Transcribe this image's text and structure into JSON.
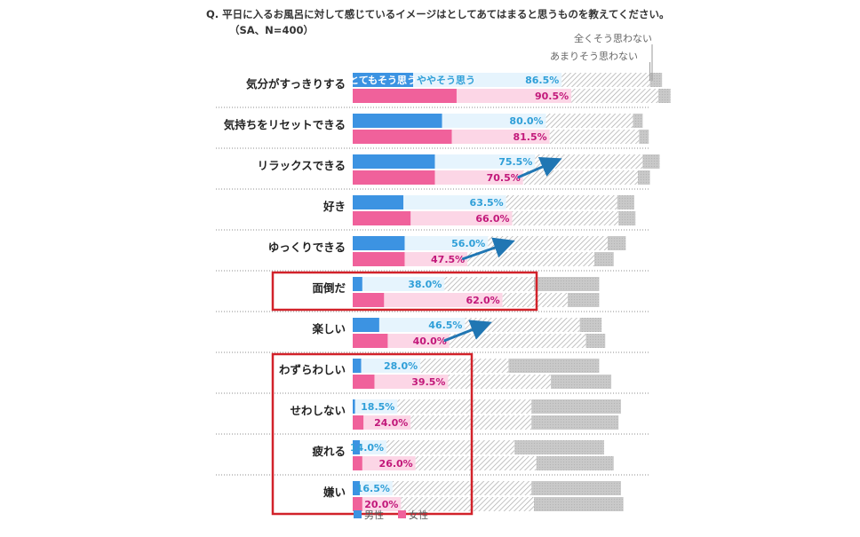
{
  "question": {
    "title": "Q. 平日に入るお風呂に対して感じているイメージはとしてあてはまると思うものを教えてください。",
    "subtitle": "（SA、N=400）"
  },
  "chart_data": {
    "type": "bar",
    "orientation": "horizontal",
    "stacked": true,
    "levels": [
      "とてもそう思う",
      "ややそう思う",
      "あまりそう思わない",
      "全くそう思わない"
    ],
    "series_names": [
      "男性",
      "女性"
    ],
    "categories": [
      "気分がすっきりする",
      "気持ちをリセットできる",
      "リラックスできる",
      "好き",
      "ゆっくりできる",
      "面倒だ",
      "楽しい",
      "わずらわしい",
      "せわしない",
      "疲れる",
      "嫌い"
    ],
    "male": [
      {
        "very": 25,
        "somewhat": 61.5,
        "not_much": 36.5,
        "not_at_all": 5,
        "agree_total": 86.5
      },
      {
        "very": 37,
        "somewhat": 43,
        "not_much": 36,
        "not_at_all": 4,
        "agree_total": 80.0
      },
      {
        "very": 34,
        "somewhat": 41.5,
        "not_much": 44.5,
        "not_at_all": 7,
        "agree_total": 75.5
      },
      {
        "very": 21,
        "somewhat": 42.5,
        "not_much": 46,
        "not_at_all": 7,
        "agree_total": 63.5
      },
      {
        "very": 21.5,
        "somewhat": 34.5,
        "not_much": 49.5,
        "not_at_all": 7.5,
        "agree_total": 56.0
      },
      {
        "very": 4,
        "somewhat": 34,
        "not_much": 37,
        "not_at_all": 27,
        "agree_total": 38.0
      },
      {
        "very": 11,
        "somewhat": 35.5,
        "not_much": 47.5,
        "not_at_all": 9,
        "agree_total": 46.5
      },
      {
        "very": 3.5,
        "somewhat": 24.5,
        "not_much": 36.5,
        "not_at_all": 37.5,
        "agree_total": 28.0
      },
      {
        "very": 1,
        "somewhat": 17.5,
        "not_much": 55.5,
        "not_at_all": 37,
        "agree_total": 18.5
      },
      {
        "very": 3,
        "somewhat": 11,
        "not_much": 53,
        "not_at_all": 37,
        "agree_total": 14.0
      },
      {
        "very": 3,
        "somewhat": 13.5,
        "not_much": 57.5,
        "not_at_all": 37,
        "agree_total": 16.5
      }
    ],
    "female": [
      {
        "very": 43,
        "somewhat": 47.5,
        "not_much": 36,
        "not_at_all": 5,
        "agree_total": 90.5
      },
      {
        "very": 41,
        "somewhat": 40.5,
        "not_much": 37,
        "not_at_all": 4,
        "agree_total": 81.5
      },
      {
        "very": 34,
        "somewhat": 36.5,
        "not_much": 47.5,
        "not_at_all": 5,
        "agree_total": 70.5
      },
      {
        "very": 24,
        "somewhat": 42,
        "not_much": 44,
        "not_at_all": 7,
        "agree_total": 66.0
      },
      {
        "very": 21.5,
        "somewhat": 26,
        "not_much": 52.5,
        "not_at_all": 8,
        "agree_total": 47.5
      },
      {
        "very": 13,
        "somewhat": 49,
        "not_much": 27,
        "not_at_all": 13,
        "agree_total": 62.0
      },
      {
        "very": 14.5,
        "somewhat": 25.5,
        "not_much": 56.5,
        "not_at_all": 8,
        "agree_total": 40.0
      },
      {
        "very": 9,
        "somewhat": 30.5,
        "not_much": 42.5,
        "not_at_all": 25,
        "agree_total": 39.5
      },
      {
        "very": 4.5,
        "somewhat": 19.5,
        "not_much": 50,
        "not_at_all": 36,
        "agree_total": 24.0
      },
      {
        "very": 4,
        "somewhat": 22,
        "not_much": 50,
        "not_at_all": 32,
        "agree_total": 26.0
      },
      {
        "very": 4,
        "somewhat": 16,
        "not_much": 55,
        "not_at_all": 37,
        "agree_total": 20.0
      }
    ],
    "highlight_groups": [
      [
        "面倒だ"
      ],
      [
        "わずらわしい",
        "せわしない",
        "疲れる",
        "嫌い"
      ]
    ],
    "arrows_male_to_female": [
      "リラックスできる",
      "ゆっくりできる",
      "楽しい"
    ],
    "xlim": [
      0,
      120
    ],
    "legend_position": "bottom"
  },
  "colors": {
    "male_strong": "#3c93e2",
    "male_light": "#e6f4fd",
    "female_strong": "#f0619b",
    "female_light": "#fcd6e6",
    "not_much": "hatch-light-gray",
    "not_at_all": "#c8c8c8",
    "highlight": "#d2222a",
    "arrow": "#2076b3"
  }
}
